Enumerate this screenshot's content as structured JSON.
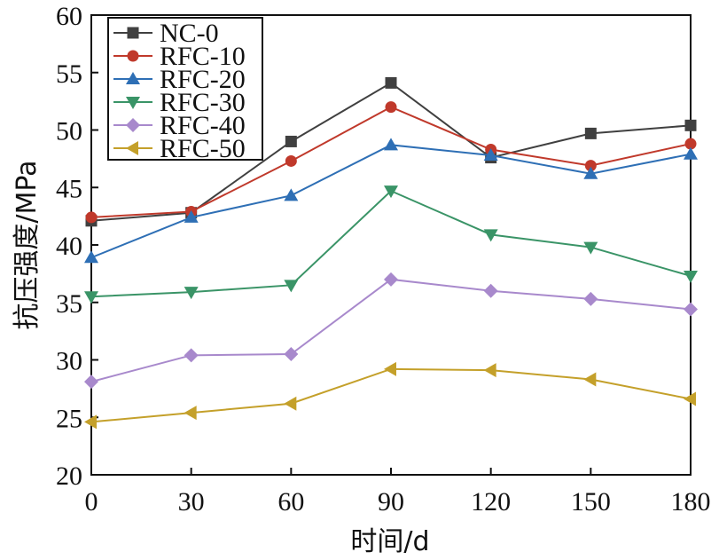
{
  "chart_data": {
    "type": "line",
    "title": "",
    "xlabel": "时间/d",
    "ylabel": "抗压强度/MPa",
    "x": [
      0,
      30,
      60,
      90,
      120,
      150,
      180
    ],
    "xlim": [
      0,
      180
    ],
    "ylim": [
      20,
      60
    ],
    "xticks": [
      "0",
      "30",
      "60",
      "90",
      "120",
      "150",
      "180"
    ],
    "yticks": [
      "20",
      "25",
      "30",
      "35",
      "40",
      "45",
      "50",
      "55",
      "60"
    ],
    "grid": false,
    "legend_position": "top-left",
    "series": [
      {
        "name": "NC-0",
        "color": "#404040",
        "marker": "square",
        "values": [
          42.1,
          42.8,
          49.0,
          54.1,
          47.6,
          49.7,
          50.4
        ]
      },
      {
        "name": "RFC-10",
        "color": "#c0392b",
        "marker": "circle",
        "values": [
          42.4,
          42.9,
          47.3,
          52.0,
          48.3,
          46.9,
          48.8
        ]
      },
      {
        "name": "RFC-20",
        "color": "#2e6fb5",
        "marker": "triangle-up",
        "values": [
          38.9,
          42.4,
          44.3,
          48.7,
          47.8,
          46.2,
          47.9
        ]
      },
      {
        "name": "RFC-30",
        "color": "#3a9467",
        "marker": "triangle-down",
        "values": [
          35.5,
          35.9,
          36.5,
          44.7,
          40.9,
          39.8,
          37.3
        ]
      },
      {
        "name": "RFC-40",
        "color": "#a889cc",
        "marker": "diamond",
        "values": [
          28.1,
          30.4,
          30.5,
          37.0,
          36.0,
          35.3,
          34.4
        ]
      },
      {
        "name": "RFC-50",
        "color": "#c4a02a",
        "marker": "triangle-left",
        "values": [
          24.6,
          25.4,
          26.2,
          29.2,
          29.1,
          28.3,
          26.6
        ]
      }
    ]
  }
}
